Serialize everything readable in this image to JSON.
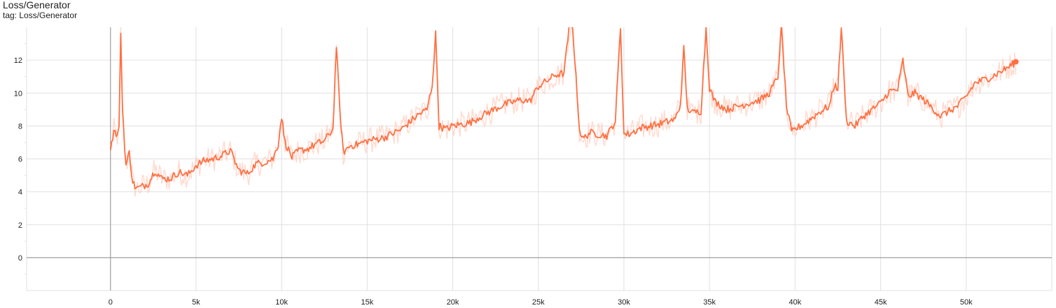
{
  "card": {
    "title": "Loss/Generator",
    "tag_line": "tag: Loss/Generator"
  },
  "colors": {
    "series": "#ff7043",
    "series_raw": "#ffccbc",
    "grid": "#e0e0e0",
    "axis": "#9e9e9e"
  },
  "chart_data": {
    "type": "line",
    "title": "",
    "xlabel": "",
    "ylabel": "",
    "xlim": [
      -4900,
      55000
    ],
    "ylim": [
      -2,
      14
    ],
    "x_ticks": [
      0,
      5000,
      10000,
      15000,
      20000,
      25000,
      30000,
      35000,
      40000,
      45000,
      50000
    ],
    "x_tick_labels": [
      "0",
      "5k",
      "10k",
      "15k",
      "20k",
      "25k",
      "30k",
      "35k",
      "40k",
      "45k",
      "50k"
    ],
    "y_ticks": [
      0,
      2,
      4,
      6,
      8,
      10,
      12
    ],
    "y_tick_labels": [
      "0",
      "2",
      "4",
      "6",
      "8",
      "10",
      "12"
    ],
    "grid": true,
    "legend": "none",
    "series": [
      {
        "role": "smoothed",
        "x": [
          0,
          200,
          400,
          500,
          600,
          700,
          900,
          1100,
          1300,
          1500,
          1800,
          2200,
          2600,
          3000,
          3500,
          4000,
          4500,
          5000,
          5500,
          6000,
          6500,
          7000,
          7500,
          8000,
          8500,
          9000,
          9500,
          9800,
          10000,
          10200,
          10600,
          11000,
          11500,
          12000,
          12500,
          13000,
          13200,
          13400,
          13600,
          14000,
          14500,
          15000,
          16000,
          17000,
          18000,
          18500,
          18800,
          19000,
          19200,
          19600,
          20000,
          21000,
          22000,
          23000,
          24000,
          24500,
          25000,
          26000,
          26500,
          26800,
          27000,
          27200,
          27400,
          27600,
          28000,
          29000,
          29500,
          29800,
          30000,
          30300,
          31000,
          32000,
          33000,
          33300,
          33500,
          33700,
          34000,
          34500,
          34800,
          35000,
          35300,
          36000,
          37000,
          38000,
          38500,
          39000,
          39200,
          39500,
          39800,
          40000,
          40500,
          41000,
          41500,
          42000,
          42300,
          42500,
          42700,
          43000,
          43500,
          44000,
          44500,
          45000,
          45500,
          46000,
          46300,
          46600,
          47000,
          47500,
          48000,
          48500,
          49000,
          49500,
          50000,
          50500,
          51000,
          51500,
          52000,
          52500,
          52900
        ],
        "y": [
          6.6,
          7.7,
          7.4,
          7.8,
          13.8,
          9.0,
          5.6,
          6.4,
          4.6,
          4.2,
          4.3,
          4.5,
          5.3,
          4.8,
          4.8,
          5.2,
          5.0,
          5.6,
          5.9,
          6.0,
          6.2,
          6.5,
          5.3,
          5.1,
          5.7,
          5.8,
          6.0,
          6.9,
          8.6,
          7.0,
          6.1,
          6.5,
          6.6,
          6.9,
          7.1,
          7.8,
          12.9,
          9.0,
          6.4,
          6.8,
          6.9,
          7.1,
          7.3,
          7.8,
          8.7,
          9.0,
          10.5,
          13.6,
          8.0,
          7.8,
          8.0,
          8.2,
          8.8,
          9.3,
          9.6,
          9.5,
          10.4,
          11.1,
          11.2,
          14.0,
          14.0,
          11.0,
          7.8,
          7.2,
          7.6,
          7.4,
          8.3,
          14.0,
          7.5,
          7.5,
          7.9,
          8.1,
          8.4,
          9.3,
          12.7,
          9.1,
          8.8,
          8.9,
          14.0,
          10.3,
          9.5,
          9.0,
          9.3,
          9.6,
          10.0,
          11.0,
          14.0,
          9.2,
          7.6,
          7.8,
          8.1,
          8.5,
          8.9,
          9.2,
          10.5,
          10.3,
          14.0,
          8.3,
          8.0,
          8.6,
          9.0,
          9.4,
          10.1,
          10.2,
          12.0,
          9.8,
          10.0,
          9.6,
          9.1,
          8.6,
          8.9,
          9.2,
          9.8,
          10.6,
          10.8,
          11.0,
          11.3,
          11.6,
          11.9
        ]
      }
    ]
  }
}
